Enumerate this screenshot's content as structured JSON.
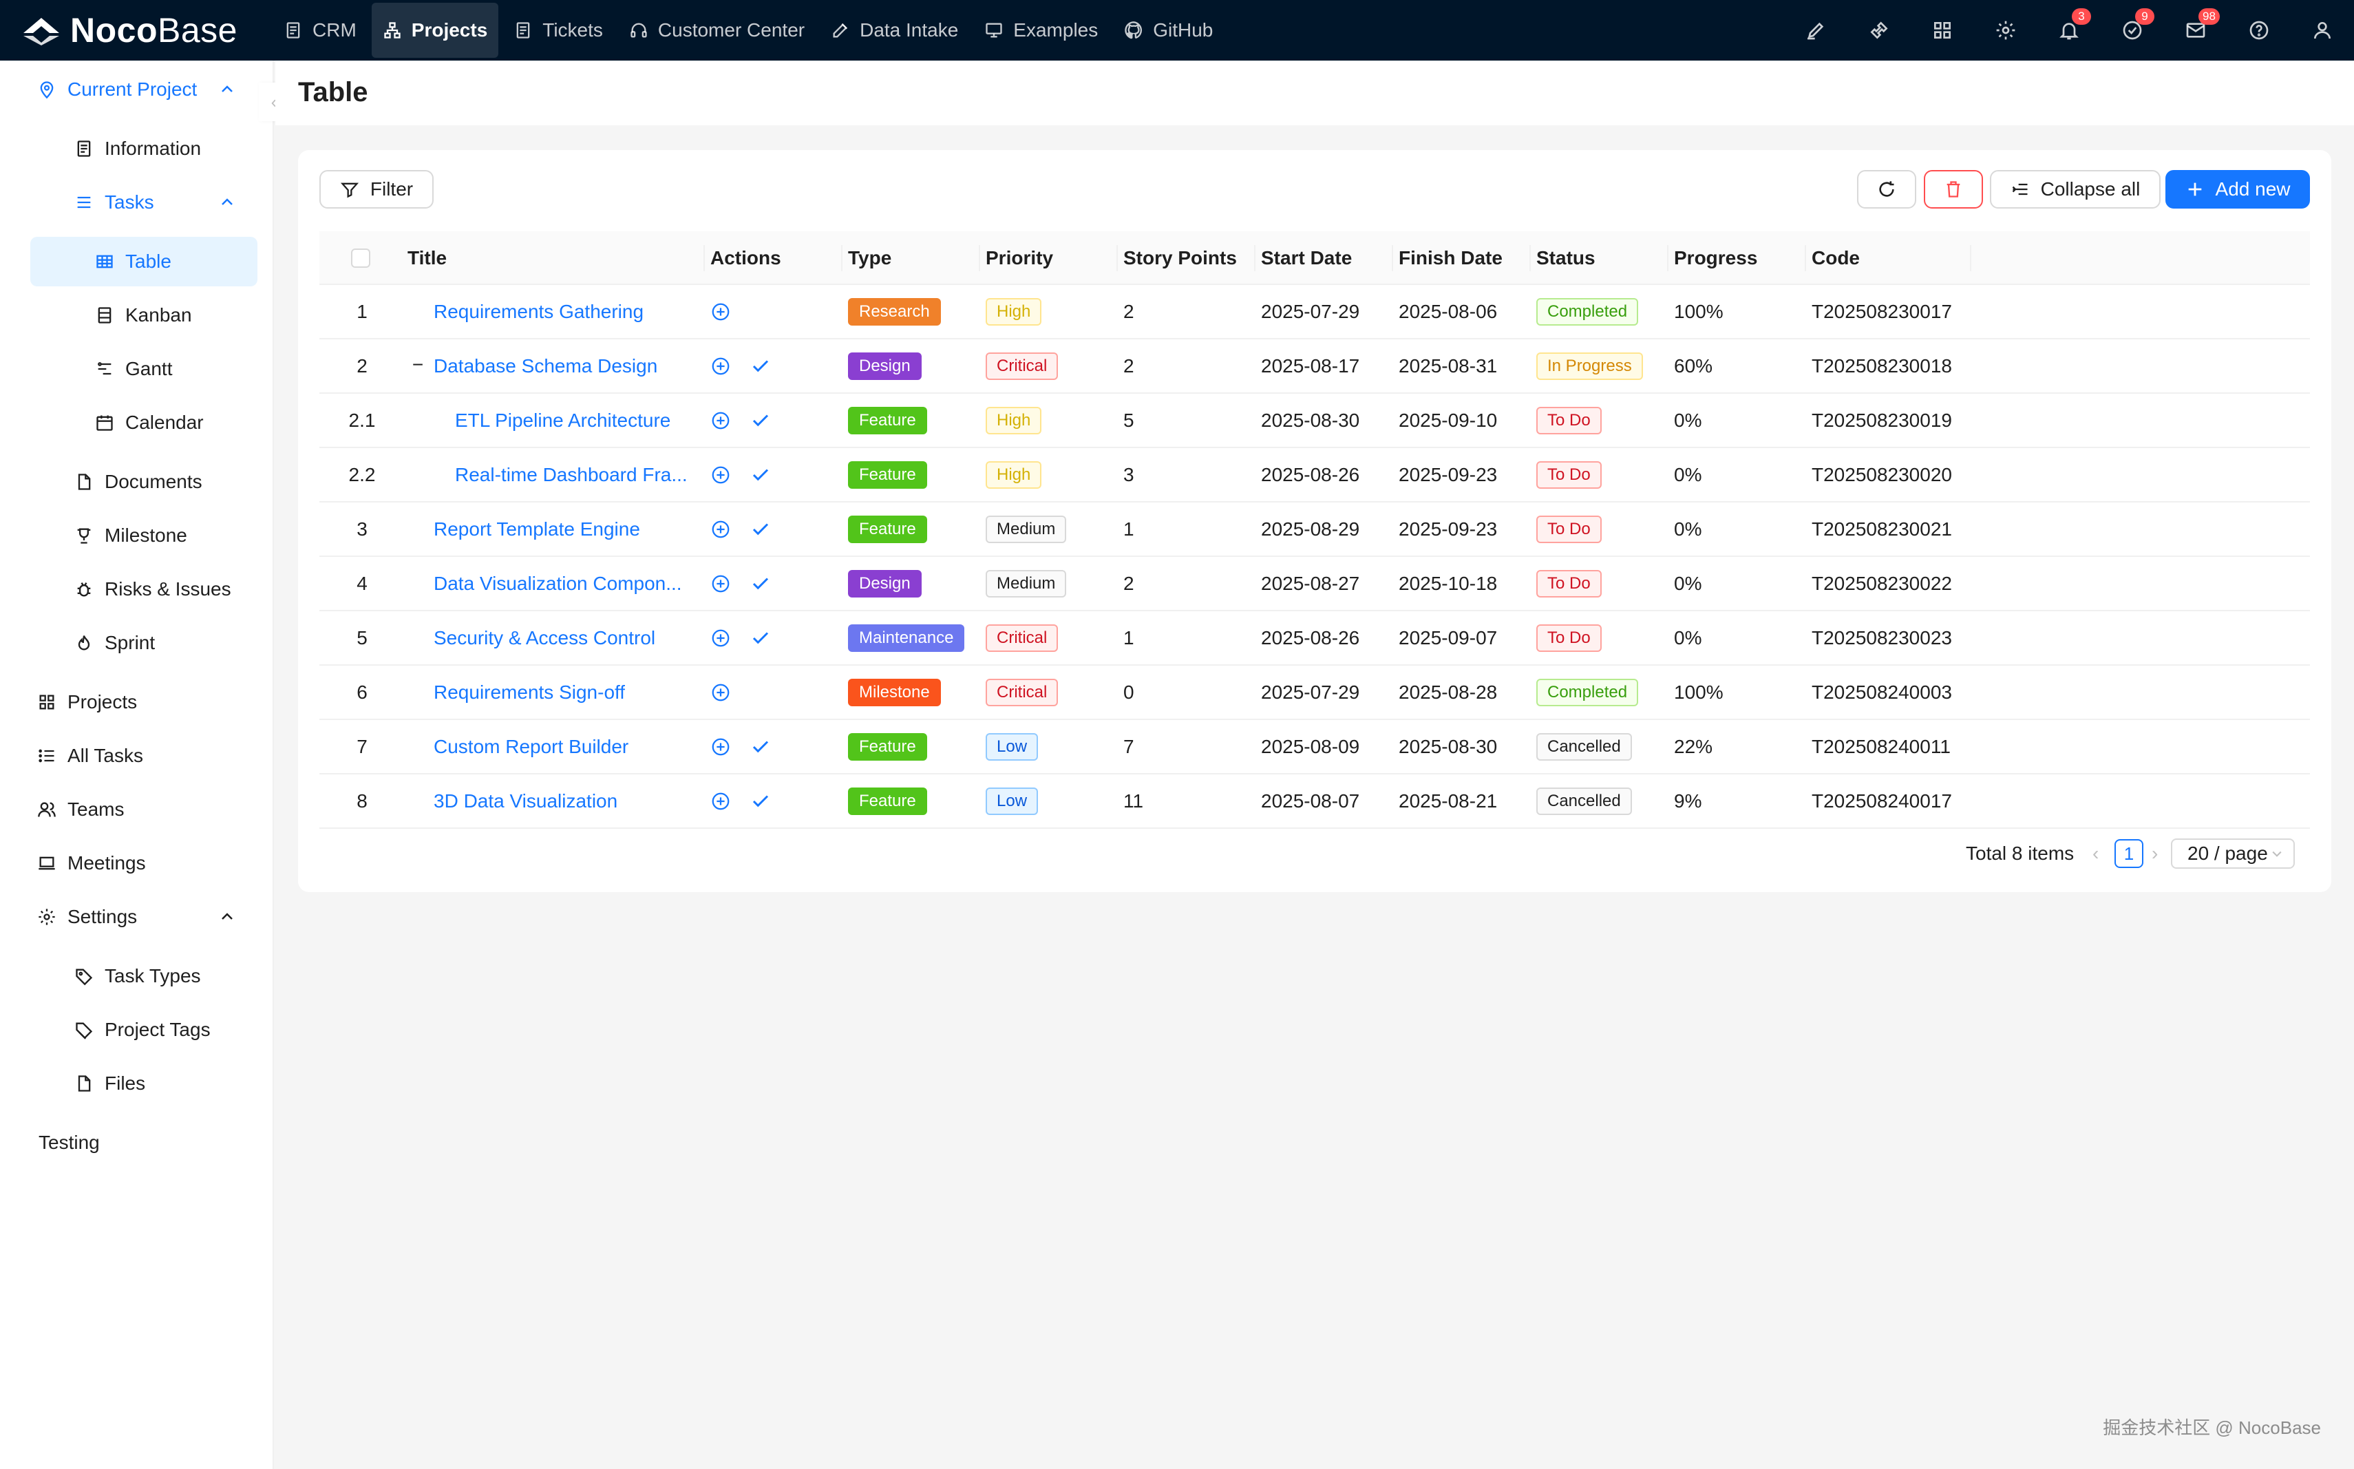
{
  "brand": {
    "name_bold": "Noco",
    "name_light": "Base"
  },
  "nav": [
    {
      "id": "crm",
      "label": "CRM",
      "icon": "document-icon",
      "active": false
    },
    {
      "id": "projects",
      "label": "Projects",
      "icon": "hierarchy-icon",
      "active": true
    },
    {
      "id": "tickets",
      "label": "Tickets",
      "icon": "document-icon",
      "active": false
    },
    {
      "id": "customer-center",
      "label": "Customer Center",
      "icon": "headset-icon",
      "active": false
    },
    {
      "id": "data-intake",
      "label": "Data Intake",
      "icon": "edit-icon",
      "active": false
    },
    {
      "id": "examples",
      "label": "Examples",
      "icon": "desktop-icon",
      "active": false
    },
    {
      "id": "github",
      "label": "GitHub",
      "icon": "github-icon",
      "active": false
    }
  ],
  "top_icons": [
    {
      "name": "highlight-icon"
    },
    {
      "name": "plugin-icon"
    },
    {
      "name": "apps-icon"
    },
    {
      "name": "settings-icon"
    },
    {
      "name": "bell-icon",
      "badge": "3"
    },
    {
      "name": "check-circle-icon",
      "badge": "9"
    },
    {
      "name": "mail-icon",
      "badge": "98"
    },
    {
      "name": "help-icon"
    },
    {
      "name": "user-icon"
    }
  ],
  "sidebar": {
    "current_project": "Current Project",
    "information": "Information",
    "tasks": "Tasks",
    "table": "Table",
    "kanban": "Kanban",
    "gantt": "Gantt",
    "calendar": "Calendar",
    "documents": "Documents",
    "milestone": "Milestone",
    "risks": "Risks & Issues",
    "sprint": "Sprint",
    "projects": "Projects",
    "all_tasks": "All Tasks",
    "teams": "Teams",
    "meetings": "Meetings",
    "settings": "Settings",
    "task_types": "Task Types",
    "project_tags": "Project Tags",
    "files": "Files",
    "testing": "Testing"
  },
  "page": {
    "title": "Table"
  },
  "toolbar": {
    "filter": "Filter",
    "collapse_all": "Collapse all",
    "add_new": "Add new"
  },
  "table": {
    "columns": {
      "title": "Title",
      "actions": "Actions",
      "type": "Type",
      "priority": "Priority",
      "story_points": "Story Points",
      "start_date": "Start Date",
      "finish_date": "Finish Date",
      "status": "Status",
      "progress": "Progress",
      "code": "Code"
    },
    "rows": [
      {
        "idx": "1",
        "title": "Requirements Gathering",
        "type": "Research",
        "priority": "High",
        "points": "2",
        "start": "2025-07-29",
        "finish": "2025-08-06",
        "status": "Completed",
        "progress": "100%",
        "code": "T202508230017",
        "check": false,
        "expander": "",
        "indent": false
      },
      {
        "idx": "2",
        "title": "Database Schema Design",
        "type": "Design",
        "priority": "Critical",
        "points": "2",
        "start": "2025-08-17",
        "finish": "2025-08-31",
        "status": "In Progress",
        "progress": "60%",
        "code": "T202508230018",
        "check": true,
        "expander": "−",
        "indent": false
      },
      {
        "idx": "2.1",
        "title": "ETL Pipeline Architecture",
        "type": "Feature",
        "priority": "High",
        "points": "5",
        "start": "2025-08-30",
        "finish": "2025-09-10",
        "status": "To Do",
        "progress": "0%",
        "code": "T202508230019",
        "check": true,
        "expander": "",
        "indent": true
      },
      {
        "idx": "2.2",
        "title": "Real-time Dashboard Fra...",
        "type": "Feature",
        "priority": "High",
        "points": "3",
        "start": "2025-08-26",
        "finish": "2025-09-23",
        "status": "To Do",
        "progress": "0%",
        "code": "T202508230020",
        "check": true,
        "expander": "",
        "indent": true
      },
      {
        "idx": "3",
        "title": "Report Template Engine",
        "type": "Feature",
        "priority": "Medium",
        "points": "1",
        "start": "2025-08-29",
        "finish": "2025-09-23",
        "status": "To Do",
        "progress": "0%",
        "code": "T202508230021",
        "check": true,
        "expander": "",
        "indent": false
      },
      {
        "idx": "4",
        "title": "Data Visualization Compon...",
        "type": "Design",
        "priority": "Medium",
        "points": "2",
        "start": "2025-08-27",
        "finish": "2025-10-18",
        "status": "To Do",
        "progress": "0%",
        "code": "T202508230022",
        "check": true,
        "expander": "",
        "indent": false
      },
      {
        "idx": "5",
        "title": "Security & Access Control",
        "type": "Maintenance",
        "priority": "Critical",
        "points": "1",
        "start": "2025-08-26",
        "finish": "2025-09-07",
        "status": "To Do",
        "progress": "0%",
        "code": "T202508230023",
        "check": true,
        "expander": "",
        "indent": false
      },
      {
        "idx": "6",
        "title": "Requirements Sign-off",
        "type": "Milestone",
        "priority": "Critical",
        "points": "0",
        "start": "2025-07-29",
        "finish": "2025-08-28",
        "status": "Completed",
        "progress": "100%",
        "code": "T202508240003",
        "check": false,
        "expander": "",
        "indent": false
      },
      {
        "idx": "7",
        "title": "Custom Report Builder",
        "type": "Feature",
        "priority": "Low",
        "points": "7",
        "start": "2025-08-09",
        "finish": "2025-08-30",
        "status": "Cancelled",
        "progress": "22%",
        "code": "T202508240011",
        "check": true,
        "expander": "",
        "indent": false
      },
      {
        "idx": "8",
        "title": "3D Data Visualization",
        "type": "Feature",
        "priority": "Low",
        "points": "11",
        "start": "2025-08-07",
        "finish": "2025-08-21",
        "status": "Cancelled",
        "progress": "9%",
        "code": "T202508240017",
        "check": true,
        "expander": "",
        "indent": false
      }
    ]
  },
  "type_colors": {
    "Research": "#f0812a",
    "Design": "#8a3fd1",
    "Feature": "#52c41a",
    "Maintenance": "#6c77f0",
    "Milestone": "#fa541c"
  },
  "priority_colors": {
    "High": {
      "color": "#d4b106",
      "bg": "#fffbe6",
      "border": "#ffe58f"
    },
    "Critical": {
      "color": "#cf1322",
      "bg": "#fff1f0",
      "border": "#ffa39e"
    },
    "Medium": {
      "color": "#1f1f1f",
      "bg": "#fafafa",
      "border": "#d9d9d9"
    },
    "Low": {
      "color": "#0958d9",
      "bg": "#e6f4ff",
      "border": "#91caff"
    }
  },
  "status_colors": {
    "Completed": {
      "color": "#389e0d",
      "bg": "#f6ffed",
      "border": "#b7eb8f"
    },
    "In Progress": {
      "color": "#d48806",
      "bg": "#fffbe6",
      "border": "#ffe58f"
    },
    "To Do": {
      "color": "#cf1322",
      "bg": "#fff1f0",
      "border": "#ffa39e"
    },
    "Cancelled": {
      "color": "#1f1f1f",
      "bg": "#fafafa",
      "border": "#d9d9d9"
    }
  },
  "pagination": {
    "total": "Total 8 items",
    "current": "1",
    "page_size": "20 / page"
  },
  "watermark": "掘金技术社区 @ NocoBase"
}
